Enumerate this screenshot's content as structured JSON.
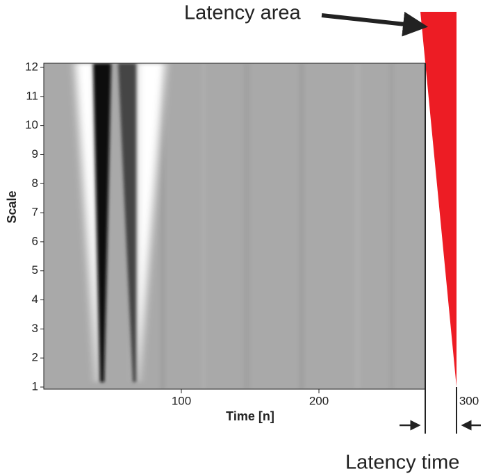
{
  "chart_data": {
    "type": "heatmap",
    "x_label": "Time [n]",
    "y_label": "Scale",
    "annotations": [
      "Latency area",
      "Latency time"
    ],
    "xlim": [
      0,
      300
    ],
    "xticks": [
      100,
      200,
      300
    ],
    "ylim": [
      1,
      12
    ],
    "yticks": [
      1,
      2,
      3,
      4,
      5,
      6,
      7,
      8,
      9,
      10,
      11,
      12
    ],
    "area_color": "#ed1c24"
  }
}
